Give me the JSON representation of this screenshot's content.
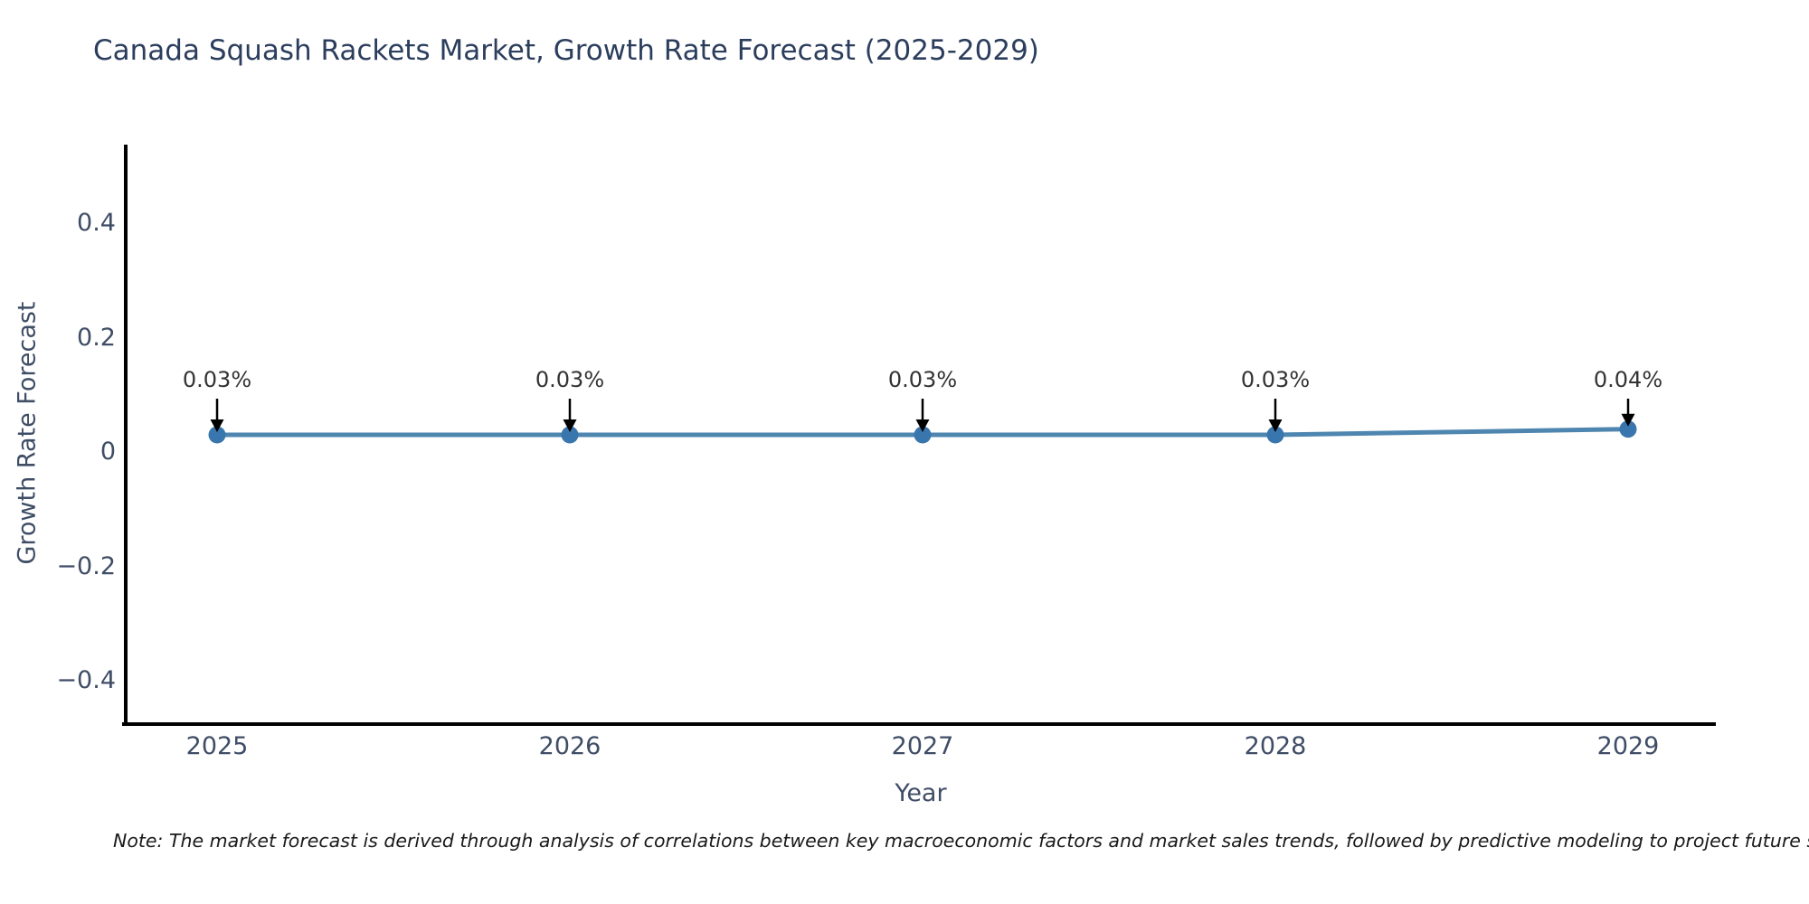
{
  "note": "Note: The market forecast is derived through analysis of correlations between key macroeconomic factors and market sales trends, followed by predictive modeling to project future sales.",
  "chart_data": {
    "type": "line",
    "title": "Canada Squash Rackets Market, Growth Rate Forecast (2025-2029)",
    "xlabel": "Year",
    "ylabel": "Growth Rate Forecast",
    "categories": [
      "2025",
      "2026",
      "2027",
      "2028",
      "2029"
    ],
    "values": [
      0.03,
      0.03,
      0.03,
      0.03,
      0.04
    ],
    "point_labels": [
      "0.03%",
      "0.03%",
      "0.03%",
      "0.03%",
      "0.04%"
    ],
    "series_name": "Growth Rate Forecast",
    "ylim": [
      -0.48,
      0.54
    ],
    "y_ticks": [
      {
        "label": "0.4",
        "value": 0.4
      },
      {
        "label": "0.2",
        "value": 0.2
      },
      {
        "label": "0",
        "value": 0.0
      },
      {
        "label": "−0.2",
        "value": -0.2
      },
      {
        "label": "−0.4",
        "value": -0.4
      }
    ],
    "grid": false,
    "legend_position": "none",
    "colors": {
      "line": "#4e86b0",
      "marker": "#3a76ae",
      "annotation_arrow": "#000000",
      "axis_spine": "#000000",
      "title_text": "#2c3e5d",
      "tick_text": "#3f4d66"
    }
  }
}
